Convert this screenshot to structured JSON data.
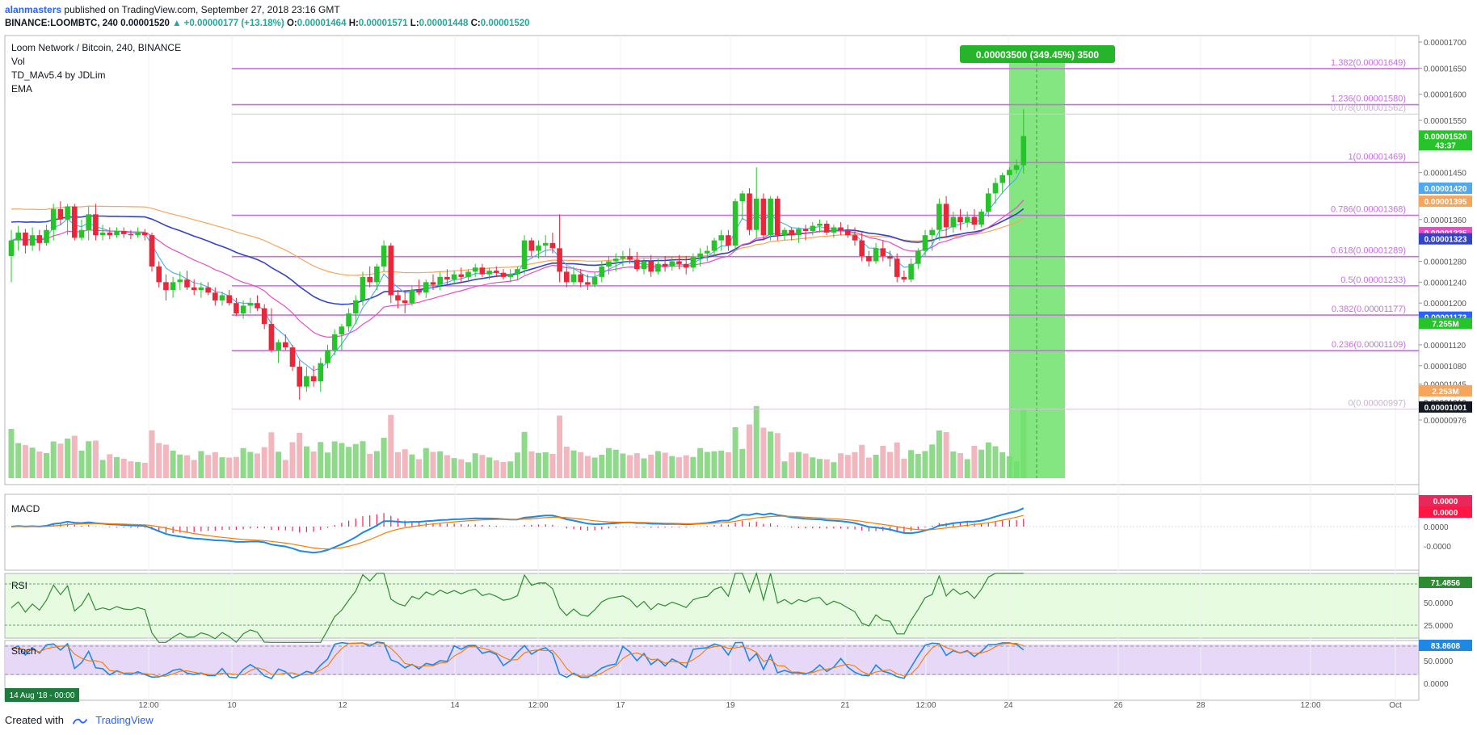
{
  "header": {
    "author": "alanmasters",
    "published": "published on TradingView.com, September 27, 2018 23:16 GMT",
    "symbol_line": "BINANCE:LOOMBTC, 240",
    "last": "0.00001520",
    "change": "▲ +0.00000177 (+13.18%)",
    "o_label": "O:",
    "o": "0.00001464",
    "h_label": "H:",
    "h": "0.00001571",
    "l_label": "L:",
    "l": "0.00001448",
    "c_label": "C:",
    "c": "0.00001520"
  },
  "legend": {
    "title": "Loom Network / Bitcoin, 240, BINANCE",
    "items": [
      "Vol",
      "TD_MAv5.4 by JDLim",
      "EMA"
    ]
  },
  "measure": {
    "label": "0.00003500 (349.45%) 3500"
  },
  "panes": {
    "macd": "MACD",
    "rsi": "RSI",
    "stoch": "Stoch"
  },
  "footer": {
    "created": "Created with",
    "brand": "TradingView"
  },
  "date_badge": "14 Aug '18 - 00:00",
  "colors": {
    "up": "#26c42a",
    "down": "#e8283a",
    "fib": "#c86fe0",
    "ema_blue": "#3343c6",
    "ema_pink": "#e64ec6",
    "ema_orange": "#f7a55a",
    "ema_light": "#4fa9ee",
    "measure": "#6ee26b",
    "vol_up": "#8fd98a",
    "vol_down": "#f2b6bf"
  },
  "chart_data": {
    "type": "candlestick",
    "title": "Loom Network / Bitcoin, 240, BINANCE",
    "x_ticks": [
      "12:00",
      "10",
      "12",
      "14",
      "12:00",
      "17",
      "19",
      "21",
      "12:00",
      "24",
      "26",
      "28",
      "12:00",
      "Oct"
    ],
    "price_axis_ticks": [
      "0.00001700",
      "0.00001650",
      "0.00001600",
      "0.00001550",
      "0.00001500",
      "0.00001450",
      "0.00001400",
      "0.00001360",
      "0.00001320",
      "0.00001280",
      "0.00001240",
      "0.00001200",
      "0.00001160",
      "0.00001120",
      "0.00001080",
      "0.00001045",
      "0.00001010",
      "0.00000976"
    ],
    "price_tags": [
      {
        "label": "0.00001520",
        "color": "#26c42a",
        "value": 1520
      },
      {
        "label": "43:37",
        "color": "#26c42a",
        "value": 1503
      },
      {
        "label": "0.00001420",
        "color": "#4fa9ee",
        "value": 1420
      },
      {
        "label": "0.00001395",
        "color": "#f7a55a",
        "value": 1395
      },
      {
        "label": "0.00001335",
        "color": "#e64ec6",
        "value": 1335
      },
      {
        "label": "0.00001323",
        "color": "#3343c6",
        "value": 1323
      },
      {
        "label": "0.00001173",
        "color": "#2962ff",
        "value": 1173
      },
      {
        "label": "7.255M",
        "color": "#26c42a",
        "value": 1161
      },
      {
        "label": "2.253M",
        "color": "#f7a55a",
        "value": 1032
      },
      {
        "label": "0.00001001",
        "color": "#131722",
        "value": 1001
      }
    ],
    "fib_levels": [
      {
        "label": "1.382(0.00001649)",
        "value": 1649
      },
      {
        "label": "1.236(0.00001580)",
        "value": 1580
      },
      {
        "label": "0.078(0.00001562)",
        "value": 1562
      },
      {
        "label": "1(0.00001469)",
        "value": 1469
      },
      {
        "label": "0.786(0.00001368)",
        "value": 1368
      },
      {
        "label": "0.618(0.00001289)",
        "value": 1289
      },
      {
        "label": "0.5(0.00001233)",
        "value": 1233
      },
      {
        "label": "0.382(0.00001177)",
        "value": 1177
      },
      {
        "label": "0.236(0.00001109)",
        "value": 1109
      },
      {
        "label": "0(0.00000997)",
        "value": 997
      }
    ],
    "candles": [
      [
        1290,
        1340,
        1240,
        1320
      ],
      [
        1320,
        1348,
        1300,
        1335
      ],
      [
        1335,
        1342,
        1295,
        1310
      ],
      [
        1310,
        1345,
        1300,
        1330
      ],
      [
        1330,
        1340,
        1300,
        1315
      ],
      [
        1315,
        1350,
        1310,
        1340
      ],
      [
        1340,
        1390,
        1320,
        1380
      ],
      [
        1380,
        1395,
        1350,
        1360
      ],
      [
        1360,
        1390,
        1330,
        1385
      ],
      [
        1385,
        1390,
        1320,
        1325
      ],
      [
        1325,
        1360,
        1320,
        1340
      ],
      [
        1340,
        1385,
        1320,
        1370
      ],
      [
        1370,
        1390,
        1320,
        1330
      ],
      [
        1330,
        1350,
        1320,
        1335
      ],
      [
        1335,
        1345,
        1322,
        1330
      ],
      [
        1330,
        1345,
        1325,
        1338
      ],
      [
        1338,
        1345,
        1325,
        1332
      ],
      [
        1332,
        1340,
        1322,
        1330
      ],
      [
        1330,
        1345,
        1325,
        1335
      ],
      [
        1335,
        1342,
        1320,
        1330
      ],
      [
        1330,
        1335,
        1260,
        1270
      ],
      [
        1270,
        1280,
        1230,
        1240
      ],
      [
        1240,
        1255,
        1205,
        1225
      ],
      [
        1225,
        1250,
        1210,
        1240
      ],
      [
        1240,
        1260,
        1225,
        1245
      ],
      [
        1245,
        1262,
        1225,
        1230
      ],
      [
        1230,
        1245,
        1215,
        1225
      ],
      [
        1225,
        1240,
        1210,
        1230
      ],
      [
        1230,
        1240,
        1215,
        1220
      ],
      [
        1220,
        1230,
        1195,
        1205
      ],
      [
        1205,
        1222,
        1195,
        1215
      ],
      [
        1215,
        1225,
        1195,
        1200
      ],
      [
        1200,
        1210,
        1175,
        1180
      ],
      [
        1180,
        1205,
        1170,
        1195
      ],
      [
        1195,
        1210,
        1180,
        1200
      ],
      [
        1200,
        1215,
        1185,
        1190
      ],
      [
        1190,
        1198,
        1150,
        1160
      ],
      [
        1160,
        1190,
        1105,
        1110
      ],
      [
        1110,
        1130,
        1085,
        1125
      ],
      [
        1125,
        1140,
        1110,
        1115
      ],
      [
        1115,
        1120,
        1070,
        1078
      ],
      [
        1078,
        1090,
        1015,
        1040
      ],
      [
        1040,
        1078,
        1030,
        1060
      ],
      [
        1060,
        1080,
        1040,
        1050
      ],
      [
        1050,
        1095,
        1030,
        1085
      ],
      [
        1085,
        1120,
        1075,
        1110
      ],
      [
        1110,
        1150,
        1100,
        1140
      ],
      [
        1140,
        1160,
        1110,
        1155
      ],
      [
        1155,
        1190,
        1145,
        1180
      ],
      [
        1180,
        1215,
        1160,
        1205
      ],
      [
        1205,
        1260,
        1195,
        1250
      ],
      [
        1250,
        1270,
        1230,
        1240
      ],
      [
        1240,
        1275,
        1225,
        1270
      ],
      [
        1270,
        1320,
        1260,
        1310
      ],
      [
        1310,
        1315,
        1200,
        1215
      ],
      [
        1215,
        1225,
        1190,
        1205
      ],
      [
        1205,
        1225,
        1180,
        1200
      ],
      [
        1200,
        1232,
        1195,
        1225
      ],
      [
        1225,
        1245,
        1215,
        1220
      ],
      [
        1220,
        1245,
        1210,
        1240
      ],
      [
        1240,
        1255,
        1225,
        1235
      ],
      [
        1235,
        1260,
        1225,
        1250
      ],
      [
        1250,
        1265,
        1235,
        1245
      ],
      [
        1245,
        1262,
        1235,
        1255
      ],
      [
        1255,
        1268,
        1240,
        1250
      ],
      [
        1250,
        1265,
        1240,
        1260
      ],
      [
        1260,
        1275,
        1250,
        1268
      ],
      [
        1268,
        1275,
        1250,
        1255
      ],
      [
        1255,
        1268,
        1245,
        1262
      ],
      [
        1262,
        1270,
        1250,
        1258
      ],
      [
        1258,
        1265,
        1245,
        1250
      ],
      [
        1250,
        1265,
        1240,
        1255
      ],
      [
        1255,
        1270,
        1245,
        1265
      ],
      [
        1265,
        1330,
        1255,
        1320
      ],
      [
        1320,
        1325,
        1290,
        1300
      ],
      [
        1300,
        1320,
        1285,
        1310
      ],
      [
        1310,
        1330,
        1290,
        1315
      ],
      [
        1315,
        1335,
        1295,
        1305
      ],
      [
        1305,
        1370,
        1240,
        1260
      ],
      [
        1260,
        1270,
        1230,
        1240
      ],
      [
        1240,
        1270,
        1235,
        1255
      ],
      [
        1255,
        1265,
        1230,
        1240
      ],
      [
        1240,
        1255,
        1225,
        1235
      ],
      [
        1235,
        1260,
        1230,
        1250
      ],
      [
        1250,
        1280,
        1240,
        1270
      ],
      [
        1270,
        1290,
        1255,
        1280
      ],
      [
        1280,
        1295,
        1260,
        1285
      ],
      [
        1285,
        1300,
        1270,
        1290
      ],
      [
        1290,
        1305,
        1275,
        1283
      ],
      [
        1283,
        1298,
        1260,
        1265
      ],
      [
        1265,
        1285,
        1255,
        1280
      ],
      [
        1280,
        1292,
        1250,
        1260
      ],
      [
        1260,
        1285,
        1255,
        1275
      ],
      [
        1275,
        1290,
        1260,
        1270
      ],
      [
        1270,
        1288,
        1262,
        1280
      ],
      [
        1280,
        1292,
        1265,
        1275
      ],
      [
        1275,
        1290,
        1255,
        1268
      ],
      [
        1268,
        1295,
        1260,
        1288
      ],
      [
        1288,
        1305,
        1270,
        1295
      ],
      [
        1295,
        1310,
        1280,
        1300
      ],
      [
        1300,
        1325,
        1290,
        1320
      ],
      [
        1320,
        1340,
        1300,
        1330
      ],
      [
        1330,
        1340,
        1300,
        1310
      ],
      [
        1310,
        1400,
        1300,
        1395
      ],
      [
        1395,
        1415,
        1360,
        1410
      ],
      [
        1410,
        1420,
        1330,
        1340
      ],
      [
        1340,
        1460,
        1325,
        1400
      ],
      [
        1400,
        1410,
        1320,
        1330
      ],
      [
        1330,
        1405,
        1320,
        1400
      ],
      [
        1400,
        1405,
        1320,
        1330
      ],
      [
        1330,
        1345,
        1320,
        1340
      ],
      [
        1340,
        1345,
        1320,
        1330
      ],
      [
        1330,
        1345,
        1315,
        1342
      ],
      [
        1342,
        1350,
        1320,
        1338
      ],
      [
        1338,
        1355,
        1330,
        1348
      ],
      [
        1348,
        1360,
        1335,
        1352
      ],
      [
        1352,
        1358,
        1330,
        1335
      ],
      [
        1335,
        1350,
        1325,
        1345
      ],
      [
        1345,
        1355,
        1330,
        1340
      ],
      [
        1340,
        1350,
        1325,
        1330
      ],
      [
        1330,
        1345,
        1310,
        1320
      ],
      [
        1320,
        1335,
        1280,
        1290
      ],
      [
        1290,
        1300,
        1270,
        1280
      ],
      [
        1280,
        1315,
        1275,
        1305
      ],
      [
        1305,
        1320,
        1280,
        1290
      ],
      [
        1290,
        1300,
        1270,
        1285
      ],
      [
        1285,
        1295,
        1240,
        1250
      ],
      [
        1250,
        1262,
        1240,
        1245
      ],
      [
        1245,
        1285,
        1240,
        1275
      ],
      [
        1275,
        1305,
        1265,
        1300
      ],
      [
        1300,
        1340,
        1290,
        1330
      ],
      [
        1330,
        1345,
        1300,
        1340
      ],
      [
        1340,
        1400,
        1320,
        1390
      ],
      [
        1390,
        1405,
        1325,
        1345
      ],
      [
        1345,
        1375,
        1335,
        1365
      ],
      [
        1365,
        1380,
        1340,
        1355
      ],
      [
        1355,
        1375,
        1345,
        1365
      ],
      [
        1365,
        1380,
        1340,
        1350
      ],
      [
        1350,
        1380,
        1345,
        1375
      ],
      [
        1375,
        1420,
        1365,
        1410
      ],
      [
        1410,
        1440,
        1390,
        1430
      ],
      [
        1430,
        1450,
        1410,
        1445
      ],
      [
        1445,
        1460,
        1425,
        1455
      ],
      [
        1455,
        1475,
        1448,
        1464
      ],
      [
        1464,
        1571,
        1448,
        1520
      ]
    ],
    "volume_scale": "relative",
    "oscillators": {
      "macd": {
        "value_tags": [
          "0.0000",
          "0.0000"
        ],
        "axis": [
          "0.0000",
          "-0.0000"
        ]
      },
      "rsi": {
        "value": "71.4856",
        "axis": [
          "50.0000",
          "25.0000"
        ]
      },
      "stoch": {
        "value": "83.8608",
        "axis": [
          "50.0000",
          "0.0000"
        ]
      }
    }
  }
}
